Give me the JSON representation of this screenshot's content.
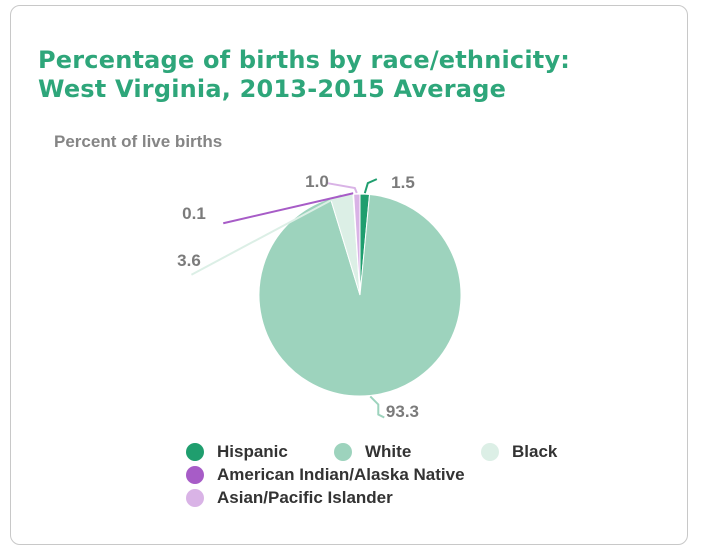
{
  "chart_data": {
    "type": "pie",
    "title": "Percentage of births by race/ethnicity:",
    "title_line2": "West Virginia, 2013-2015 Average",
    "subtitle": "Percent of live births",
    "slices": [
      {
        "name": "Hispanic",
        "value": 1.5,
        "label": "1.5",
        "color": "#1f9e6e"
      },
      {
        "name": "White",
        "value": 93.3,
        "label": "93.3",
        "color": "#9dd3bd"
      },
      {
        "name": "Black",
        "value": 3.6,
        "label": "3.6",
        "color": "#dcefe6"
      },
      {
        "name": "American Indian/Alaska Native",
        "value": 0.1,
        "label": "0.1",
        "color": "#a75cc7"
      },
      {
        "name": "Asian/Pacific Islander",
        "value": 1.0,
        "label": "1.0",
        "color": "#d9b3e6"
      }
    ],
    "legend_position": "bottom"
  }
}
